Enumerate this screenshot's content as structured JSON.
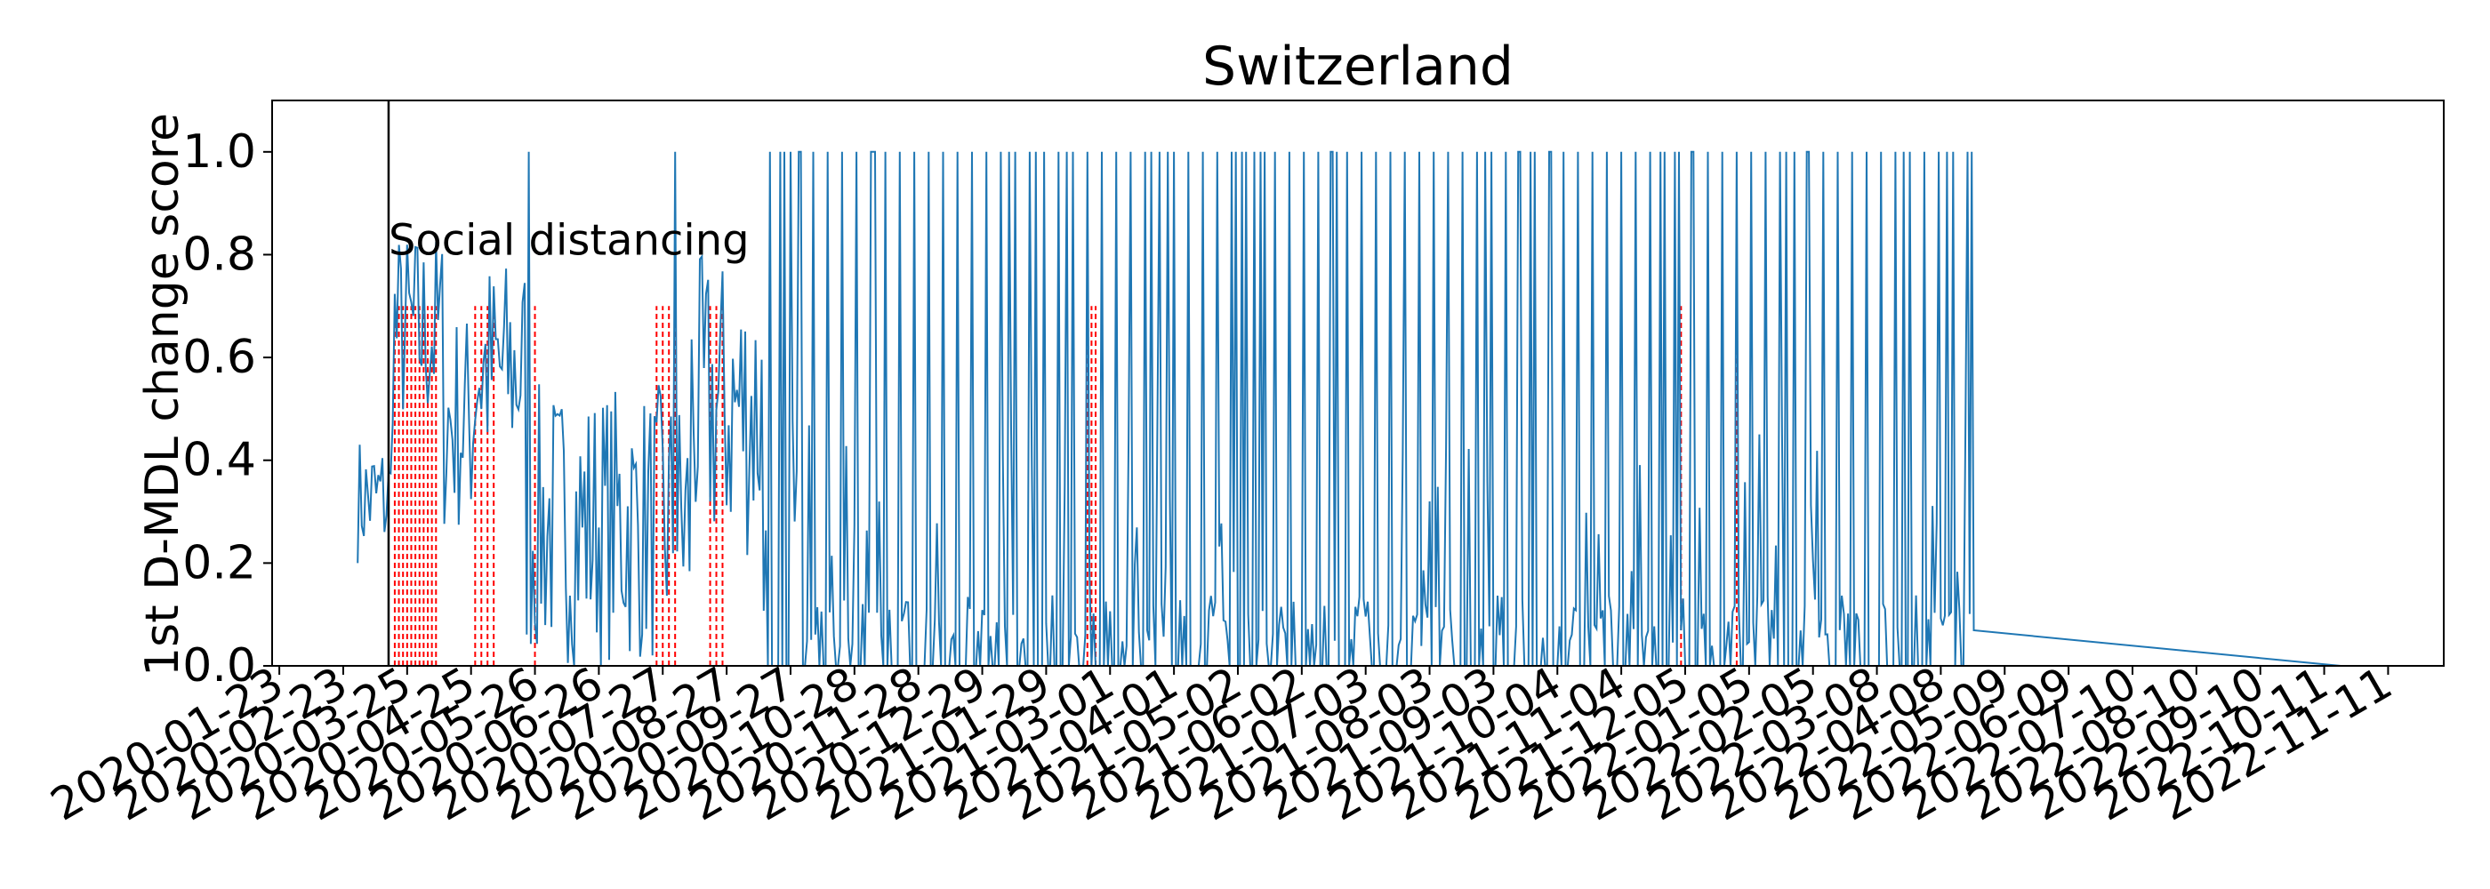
{
  "chart_data": {
    "type": "line",
    "title": "Switzerland",
    "xlabel": "",
    "ylabel": "1st D-MDL change score",
    "ylim": [
      0,
      1.1
    ],
    "xlim": [
      -3.5,
      1050
    ],
    "yticks": [
      0.0,
      0.2,
      0.4,
      0.6,
      0.8,
      1.0
    ],
    "ytick_labels": [
      "0.0",
      "0.2",
      "0.4",
      "0.6",
      "0.8",
      "1.0"
    ],
    "xtick_labels": [
      "2020-01-23",
      "2020-02-23",
      "2020-03-25",
      "2020-04-25",
      "2020-05-26",
      "2020-06-26",
      "2020-07-27",
      "2020-08-27",
      "2020-09-27",
      "2020-10-28",
      "2020-11-28",
      "2020-12-29",
      "2021-01-29",
      "2021-03-01",
      "2021-04-01",
      "2021-05-02",
      "2021-06-02",
      "2021-07-03",
      "2021-08-03",
      "2021-09-03",
      "2021-10-04",
      "2021-11-04",
      "2021-12-05",
      "2022-01-05",
      "2022-02-05",
      "2022-03-08",
      "2022-04-08",
      "2022-05-09",
      "2022-06-09",
      "2022-07-10",
      "2022-08-10",
      "2022-09-10",
      "2022-10-11",
      "2022-11-11"
    ],
    "xtick_day_spacing": 31,
    "grid": false,
    "intervention": {
      "label": "Social distancing",
      "day": 53
    },
    "series_color": "#1f77b4",
    "alarm_color": "#ff0000",
    "intervention_color": "#000000",
    "series": [
      {
        "name": "1st D-MDL change score",
        "day_start": 38,
        "day_end": 822
      }
    ],
    "alarm_line_height": 0.7
  }
}
